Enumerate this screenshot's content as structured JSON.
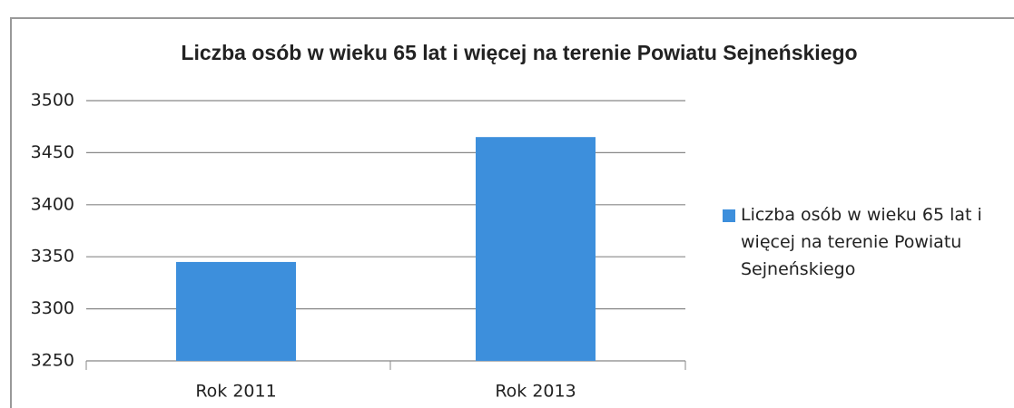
{
  "chart_data": {
    "type": "bar",
    "title": "Liczba osób w wieku 65 lat i więcej na terenie Powiatu Sejneńskiego",
    "categories": [
      "Rok 2011",
      "Rok 2013"
    ],
    "series": [
      {
        "name": "Liczba osób w wieku 65 lat i więcej na terenie Powiatu Sejneńskiego",
        "color": "#3d8fdc",
        "values": [
          3345,
          3465
        ]
      }
    ],
    "ylim": [
      3250,
      3500
    ],
    "yticks": [
      3250,
      3300,
      3350,
      3400,
      3450,
      3500
    ],
    "grid": true,
    "legend": "right"
  }
}
